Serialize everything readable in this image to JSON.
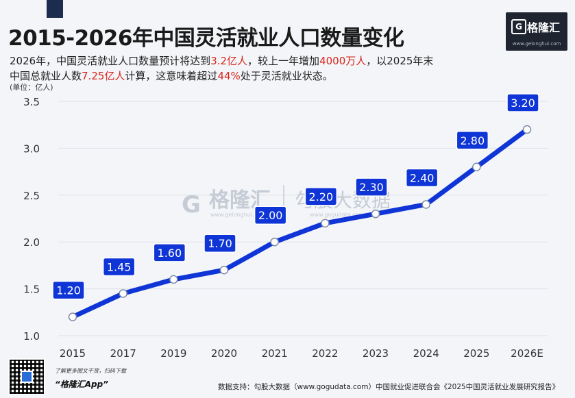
{
  "header": {
    "title": "2015-2026年中国灵活就业人口数量变化",
    "subtitle_line1": [
      "2026年，中国灵活就业人口数量预计将达到",
      "3.2亿人",
      "，较上一年增加",
      "4000万人",
      "，以2025年末"
    ],
    "subtitle_line2": [
      "中国总就业人数",
      "7.25亿人",
      "计算，这意味着超过",
      "44%",
      "处于灵活就业状态。"
    ],
    "unit": "(单位：亿人)"
  },
  "logo": {
    "name": "格隆汇",
    "mark": "G",
    "url": "www.gelonghui.com"
  },
  "watermark": {
    "brand": "格隆汇",
    "url": "www.gelonghui.com",
    "partner": "勾股大数据",
    "partner_url": "www.gogudata.com"
  },
  "chart_data": {
    "type": "line",
    "x": [
      "2015",
      "2017",
      "2019",
      "2020",
      "2021",
      "2022",
      "2023",
      "2024",
      "2025",
      "2026E"
    ],
    "series": [
      {
        "values": [
          1.2,
          1.45,
          1.6,
          1.7,
          2.0,
          2.2,
          2.3,
          2.4,
          2.8,
          3.2
        ]
      }
    ],
    "data_labels": [
      "1.20",
      "1.45",
      "1.60",
      "1.70",
      "2.00",
      "2.20",
      "2.30",
      "2.40",
      "2.80",
      "3.20"
    ],
    "yticks": [
      "1.0",
      "1.5",
      "2.0",
      "2.5",
      "3.0",
      "3.5"
    ],
    "ylim": [
      1.0,
      3.5
    ],
    "grid": true,
    "line_color": "#0f35d6",
    "label_bg": "#0f35d6"
  },
  "footer": {
    "scan_hint": "了解更多图文干货，扫码下载",
    "app_name": "“格隆汇App”",
    "source": "数据支持：勾股大数据（www.gogudata.com）中国就业促进联合会《2025中国灵活就业发展研究报告》"
  }
}
